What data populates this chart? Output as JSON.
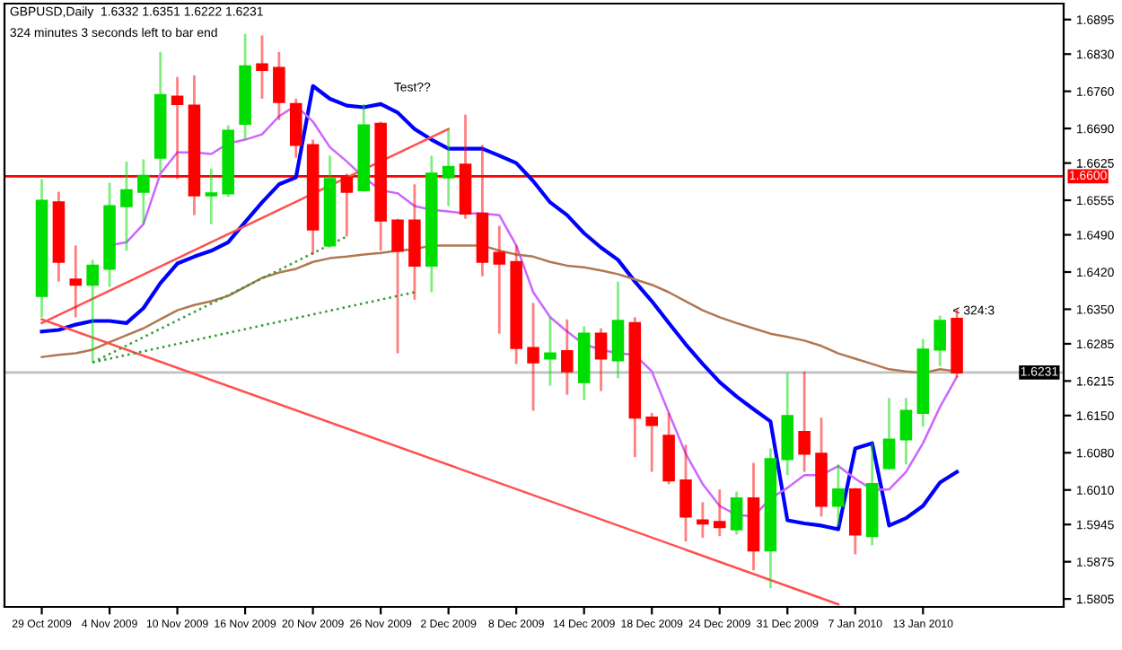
{
  "chart_data": {
    "type": "candlestick",
    "title": "GBPUSD,Daily  1.6332 1.6351 1.6222 1.6231",
    "subtitle": "324 minutes 3 seconds left to bar end",
    "annotations": [
      "Test??",
      "< 324:3"
    ],
    "categories": [
      "29 Oct 2009",
      null,
      null,
      null,
      "4 Nov 2009",
      null,
      null,
      null,
      "10 Nov 2009",
      null,
      null,
      null,
      "16 Nov 2009",
      null,
      null,
      null,
      "20 Nov 2009",
      null,
      null,
      null,
      "26 Nov 2009",
      null,
      null,
      null,
      "2 Dec 2009",
      null,
      null,
      null,
      "8 Dec 2009",
      null,
      null,
      null,
      "14 Dec 2009",
      null,
      null,
      null,
      "18 Dec 2009",
      null,
      null,
      null,
      "24 Dec 2009",
      null,
      null,
      null,
      "31 Dec 2009",
      null,
      null,
      null,
      "7 Jan 2010",
      null,
      null,
      null,
      "13 Jan 2010",
      null,
      null
    ],
    "ohlc": [
      [
        1.6375,
        1.6595,
        1.6335,
        1.6554
      ],
      [
        1.6551,
        1.6571,
        1.6402,
        1.6439
      ],
      [
        1.6406,
        1.647,
        1.6335,
        1.6396
      ],
      [
        1.6396,
        1.6443,
        1.625,
        1.6432
      ],
      [
        1.6426,
        1.6588,
        1.6392,
        1.6544
      ],
      [
        1.6544,
        1.6628,
        1.646,
        1.6574
      ],
      [
        1.6571,
        1.6632,
        1.651,
        1.6601
      ],
      [
        1.6635,
        1.6834,
        1.6608,
        1.6753
      ],
      [
        1.675,
        1.6787,
        1.6595,
        1.6736
      ],
      [
        1.6733,
        1.679,
        1.6527,
        1.6564
      ],
      [
        1.6564,
        1.6615,
        1.651,
        1.6568
      ],
      [
        1.6568,
        1.6696,
        1.6561,
        1.6686
      ],
      [
        1.6699,
        1.6868,
        1.6669,
        1.6807
      ],
      [
        1.6811,
        1.6865,
        1.6746,
        1.68
      ],
      [
        1.6804,
        1.6834,
        1.6706,
        1.674
      ],
      [
        1.6736,
        1.6746,
        1.6635,
        1.6659
      ],
      [
        1.6659,
        1.6669,
        1.6453,
        1.65
      ],
      [
        1.647,
        1.6639,
        1.6466,
        1.6595
      ],
      [
        1.6598,
        1.6605,
        1.6487,
        1.6571
      ],
      [
        1.6574,
        1.6736,
        1.6571,
        1.6696
      ],
      [
        1.6699,
        1.6703,
        1.646,
        1.6517
      ],
      [
        1.6517,
        1.652,
        1.6267,
        1.646
      ],
      [
        1.6517,
        1.6585,
        1.6368,
        1.6432
      ],
      [
        1.6432,
        1.6639,
        1.6382,
        1.6605
      ],
      [
        1.6598,
        1.6689,
        1.6544,
        1.6618
      ],
      [
        1.6622,
        1.6716,
        1.652,
        1.653
      ],
      [
        1.653,
        1.6659,
        1.6412,
        1.6439
      ],
      [
        1.6456,
        1.6507,
        1.6304,
        1.6436
      ],
      [
        1.6439,
        1.647,
        1.6247,
        1.6277
      ],
      [
        1.6277,
        1.6362,
        1.6159,
        1.625
      ],
      [
        1.6257,
        1.6335,
        1.6206,
        1.6267
      ],
      [
        1.6271,
        1.6331,
        1.6189,
        1.6233
      ],
      [
        1.6213,
        1.6318,
        1.6179,
        1.6304
      ],
      [
        1.6304,
        1.6314,
        1.6196,
        1.6257
      ],
      [
        1.6254,
        1.6402,
        1.622,
        1.6328
      ],
      [
        1.6324,
        1.6335,
        1.6072,
        1.6146
      ],
      [
        1.6146,
        1.6155,
        1.6044,
        1.6132
      ],
      [
        1.6112,
        1.6155,
        1.6021,
        1.6028
      ],
      [
        1.6028,
        1.6095,
        1.5913,
        1.596
      ],
      [
        1.5953,
        1.5987,
        1.592,
        1.5947
      ],
      [
        1.595,
        1.6011,
        1.5923,
        1.594
      ],
      [
        1.5936,
        1.6007,
        1.5926,
        1.5994
      ],
      [
        1.5994,
        1.6061,
        1.5859,
        1.5896
      ],
      [
        1.5896,
        1.6088,
        1.5825,
        1.6068
      ],
      [
        1.6068,
        1.623,
        1.6038,
        1.6149
      ],
      [
        1.6119,
        1.6233,
        1.6044,
        1.6078
      ],
      [
        1.6078,
        1.6146,
        1.596,
        1.598
      ],
      [
        1.598,
        1.6058,
        1.5943,
        1.6011
      ],
      [
        1.6011,
        1.6014,
        1.5889,
        1.5926
      ],
      [
        1.5923,
        1.6098,
        1.5906,
        1.6021
      ],
      [
        1.6051,
        1.6183,
        1.6048,
        1.6105
      ],
      [
        1.6105,
        1.6183,
        1.6058,
        1.6159
      ],
      [
        1.6155,
        1.6294,
        1.6129,
        1.6274
      ],
      [
        1.6274,
        1.6338,
        1.6243,
        1.6328
      ],
      [
        1.6332,
        1.6351,
        1.6222,
        1.6231
      ]
    ],
    "colors": [
      "#00dd00",
      "#ff0000",
      "#ff0000",
      "#00dd00",
      "#00dd00",
      "#00dd00",
      "#00dd00",
      "#00dd00",
      "#ff0000",
      "#ff0000",
      "#00dd00",
      "#00dd00",
      "#00dd00",
      "#ff0000",
      "#ff0000",
      "#ff0000",
      "#ff0000",
      "#00dd00",
      "#ff0000",
      "#00dd00",
      "#ff0000",
      "#ff0000",
      "#ff0000",
      "#00dd00",
      "#00dd00",
      "#ff0000",
      "#ff0000",
      "#ff0000",
      "#ff0000",
      "#ff0000",
      "#00dd00",
      "#ff0000",
      "#00dd00",
      "#ff0000",
      "#00dd00",
      "#ff0000",
      "#ff0000",
      "#ff0000",
      "#ff0000",
      "#ff0000",
      "#ff0000",
      "#00dd00",
      "#ff0000",
      "#00dd00",
      "#00dd00",
      "#ff0000",
      "#ff0000",
      "#00dd00",
      "#ff0000",
      "#00dd00",
      "#00dd00",
      "#00dd00",
      "#00dd00",
      "#00dd00",
      "#ff0000"
    ],
    "series": [
      {
        "type": "line",
        "color": "#0000ff",
        "values": [
          1.6308,
          1.6311,
          1.6321,
          1.6328,
          1.6328,
          1.6324,
          1.6352,
          1.6399,
          1.6436,
          1.6449,
          1.646,
          1.6476,
          1.6514,
          1.6551,
          1.6585,
          1.6598,
          1.677,
          1.6746,
          1.6733,
          1.673,
          1.6736,
          1.672,
          1.6689,
          1.6669,
          1.6652,
          1.6652,
          1.6652,
          1.6639,
          1.6625,
          1.6591,
          1.6551,
          1.6527,
          1.6493,
          1.6466,
          1.6443,
          1.6402,
          1.6365,
          1.6324,
          1.6284,
          1.6247,
          1.6213,
          1.6186,
          1.6162,
          1.6139,
          1.5953,
          1.5947,
          1.5943,
          1.5936,
          1.6088,
          1.6098,
          1.5943,
          1.5957,
          1.598,
          1.6024,
          1.6044
        ]
      },
      {
        "type": "line",
        "color": "#cc66ff",
        "values": [
          null,
          null,
          null,
          null,
          1.647,
          1.6476,
          1.651,
          1.6605,
          1.6645,
          1.6645,
          1.6642,
          1.6662,
          1.6669,
          1.6679,
          1.6713,
          1.6733,
          1.6703,
          1.6655,
          1.6628,
          1.6598,
          1.6574,
          1.6568,
          1.6544,
          1.6537,
          1.6534,
          1.653,
          1.653,
          1.6527,
          1.647,
          1.6382,
          1.6335,
          1.6308,
          1.6284,
          1.6274,
          1.6267,
          1.6264,
          1.6233,
          1.6155,
          1.6078,
          1.6021,
          1.598,
          1.5963,
          1.596,
          1.5994,
          1.6014,
          1.6038,
          1.6038,
          1.6055,
          1.6031,
          1.6011,
          1.6011,
          1.6044,
          1.6098,
          1.6166,
          1.6223
        ]
      },
      {
        "type": "line",
        "color": "#b07850",
        "values": [
          1.626,
          1.6264,
          1.6267,
          1.6274,
          1.6288,
          1.6301,
          1.6314,
          1.6331,
          1.6348,
          1.6358,
          1.6365,
          1.6375,
          1.6392,
          1.6409,
          1.6419,
          1.6426,
          1.6439,
          1.6446,
          1.6449,
          1.6453,
          1.6456,
          1.646,
          1.6463,
          1.647,
          1.647,
          1.647,
          1.647,
          1.646,
          1.6453,
          1.6449,
          1.6439,
          1.6432,
          1.6429,
          1.6423,
          1.6416,
          1.6406,
          1.6396,
          1.6382,
          1.6365,
          1.6348,
          1.6335,
          1.6324,
          1.6314,
          1.6304,
          1.6298,
          1.6291,
          1.6281,
          1.6267,
          1.6257,
          1.6247,
          1.6237,
          1.6233,
          1.623,
          1.6237,
          1.6233
        ]
      },
      {
        "type": "line",
        "color": "#ff5050",
        "values": [
          1.6331,
          null,
          null,
          null,
          null,
          null,
          null,
          null,
          null,
          null,
          null,
          null,
          null,
          null,
          null,
          null,
          null,
          null,
          null,
          null,
          null,
          null,
          null,
          null,
          null,
          null,
          null,
          null,
          null,
          null,
          null,
          null,
          null,
          null,
          null,
          null,
          null,
          null,
          null,
          null,
          null,
          null,
          null,
          null,
          null,
          null,
          null,
          1.5795,
          null,
          null,
          null,
          null,
          null,
          null,
          null
        ]
      },
      {
        "type": "line",
        "color": "#ff5050",
        "values": [
          1.6324,
          null,
          null,
          null,
          null,
          null,
          null,
          null,
          null,
          null,
          null,
          null,
          null,
          null,
          null,
          null,
          null,
          null,
          null,
          null,
          null,
          null,
          null,
          null,
          1.6689,
          null,
          null,
          null,
          null,
          null,
          null,
          null,
          null,
          null,
          null,
          null,
          null,
          null,
          null,
          null,
          null,
          null,
          null,
          null,
          null,
          null,
          null,
          null,
          null,
          null,
          null,
          null,
          null,
          null,
          null
        ]
      },
      {
        "type": "line",
        "color": "#339933",
        "line_style": "dotted",
        "values": [
          null,
          null,
          null,
          1.625,
          null,
          null,
          null,
          null,
          null,
          null,
          null,
          null,
          null,
          null,
          null,
          null,
          null,
          null,
          1.6487,
          null,
          null,
          null,
          null,
          null,
          null,
          null,
          null,
          null,
          null,
          null,
          null,
          null,
          null,
          null,
          null,
          null,
          null,
          null,
          null,
          null,
          null,
          null,
          null,
          null,
          null,
          null,
          null,
          null,
          null,
          null,
          null,
          null,
          null,
          null,
          null
        ]
      },
      {
        "type": "line",
        "color": "#339933",
        "line_style": "dotted",
        "values": [
          null,
          null,
          null,
          1.625,
          null,
          null,
          null,
          null,
          null,
          null,
          null,
          null,
          null,
          null,
          null,
          null,
          null,
          null,
          null,
          null,
          null,
          null,
          1.6382,
          null,
          null,
          null,
          null,
          null,
          null,
          null,
          null,
          null,
          null,
          null,
          null,
          null,
          null,
          null,
          null,
          null,
          null,
          null,
          null,
          null,
          null,
          null,
          null,
          null,
          null,
          null,
          null,
          null,
          null,
          null,
          null
        ]
      }
    ],
    "ref_lines": [
      {
        "axis": "y",
        "value": 1.66,
        "label": "1.6600",
        "color": "#ff0000"
      },
      {
        "axis": "y",
        "value": 1.6231,
        "label": "1.6231",
        "color": "#c0c0c0"
      }
    ],
    "ylim": [
      1.579,
      1.6925
    ],
    "yticks": [
      1.6895,
      {
        "value": 1.683,
        "label": "1.6830"
      },
      {
        "value": 1.676,
        "label": "1.6760"
      },
      {
        "value": 1.669,
        "label": "1.6690"
      },
      1.6625,
      1.6555,
      {
        "value": 1.649,
        "label": "1.6490"
      },
      {
        "value": 1.642,
        "label": "1.6420"
      },
      {
        "value": 1.635,
        "label": "1.6350"
      },
      1.6285,
      1.6215,
      {
        "value": 1.615,
        "label": "1.6150"
      },
      {
        "value": 1.608,
        "label": "1.6080"
      },
      {
        "value": 1.601,
        "label": "1.6010"
      },
      1.5945,
      1.5875,
      1.5805
    ]
  }
}
